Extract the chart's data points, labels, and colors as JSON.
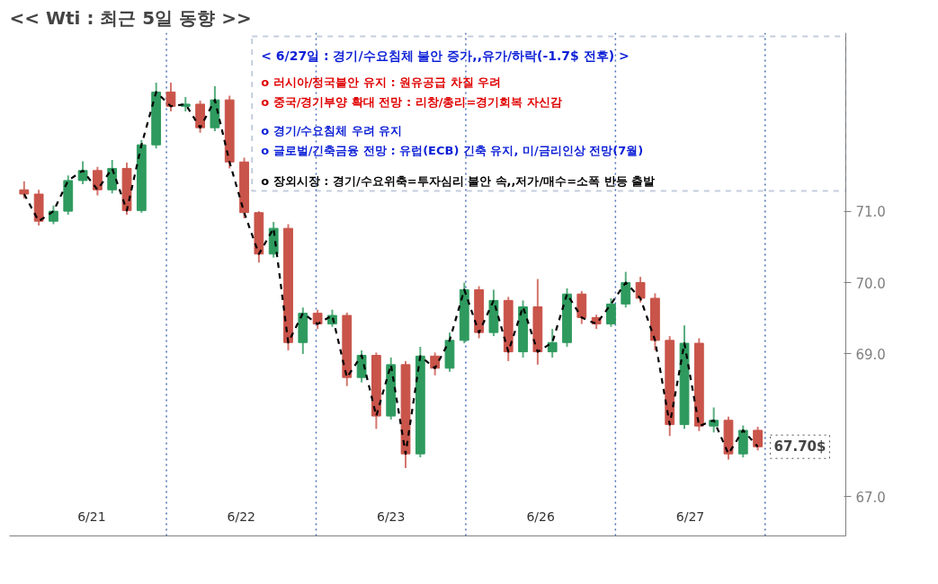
{
  "chart_data": {
    "type": "candlestick",
    "title": "<< Wti : 최근 5일 동향 >>",
    "categories": [
      null,
      null,
      null,
      null,
      null,
      null,
      null,
      null,
      null,
      null,
      null,
      null,
      null,
      null,
      null,
      null,
      null,
      null,
      null,
      null,
      null,
      null,
      null,
      null,
      null,
      null,
      null,
      null,
      null,
      null,
      null,
      null,
      null,
      null,
      null,
      null,
      null,
      null,
      null,
      null,
      null,
      null,
      null,
      null,
      null,
      null,
      null,
      null,
      null,
      null,
      null
    ],
    "ohlc": [
      [
        71.3,
        71.42,
        71.18,
        71.24
      ],
      [
        71.24,
        71.3,
        70.8,
        70.86
      ],
      [
        70.86,
        71.08,
        70.82,
        71.0
      ],
      [
        71.0,
        71.5,
        70.95,
        71.43
      ],
      [
        71.43,
        71.7,
        71.38,
        71.57
      ],
      [
        71.57,
        71.62,
        71.22,
        71.3
      ],
      [
        71.3,
        71.72,
        71.25,
        71.6
      ],
      [
        71.6,
        71.68,
        70.95,
        71.01
      ],
      [
        71.01,
        72.0,
        70.98,
        71.93
      ],
      [
        71.93,
        72.8,
        71.88,
        72.67
      ],
      [
        72.67,
        72.8,
        72.4,
        72.47
      ],
      [
        72.47,
        72.6,
        72.4,
        72.5
      ],
      [
        72.5,
        72.55,
        72.1,
        72.17
      ],
      [
        72.17,
        72.75,
        72.12,
        72.56
      ],
      [
        72.56,
        72.62,
        71.6,
        71.69
      ],
      [
        71.69,
        71.75,
        70.9,
        70.98
      ],
      [
        70.98,
        71.0,
        70.28,
        70.4
      ],
      [
        70.4,
        70.85,
        70.35,
        70.76
      ],
      [
        70.76,
        70.82,
        69.05,
        69.16
      ],
      [
        69.16,
        69.65,
        69.0,
        69.57
      ],
      [
        69.57,
        69.62,
        69.35,
        69.42
      ],
      [
        69.42,
        69.62,
        69.38,
        69.54
      ],
      [
        69.54,
        69.58,
        68.55,
        68.67
      ],
      [
        68.67,
        69.05,
        68.6,
        68.98
      ],
      [
        68.98,
        69.02,
        67.95,
        68.13
      ],
      [
        68.13,
        68.95,
        68.08,
        68.85
      ],
      [
        68.85,
        68.9,
        67.4,
        67.6
      ],
      [
        67.6,
        69.1,
        67.55,
        68.97
      ],
      [
        68.97,
        69.02,
        68.7,
        68.8
      ],
      [
        68.8,
        69.3,
        68.75,
        69.19
      ],
      [
        69.19,
        70.0,
        69.15,
        69.9
      ],
      [
        69.9,
        69.95,
        69.22,
        69.3
      ],
      [
        69.3,
        69.9,
        69.25,
        69.75
      ],
      [
        69.75,
        69.8,
        68.9,
        69.03
      ],
      [
        69.03,
        69.75,
        68.95,
        69.66
      ],
      [
        69.66,
        70.05,
        68.85,
        69.03
      ],
      [
        69.03,
        69.35,
        68.95,
        69.16
      ],
      [
        69.16,
        69.92,
        69.1,
        69.84
      ],
      [
        69.84,
        69.88,
        69.42,
        69.51
      ],
      [
        69.51,
        69.55,
        69.35,
        69.42
      ],
      [
        69.42,
        69.78,
        69.38,
        69.7
      ],
      [
        69.7,
        70.15,
        69.65,
        70.0
      ],
      [
        70.0,
        70.08,
        69.72,
        69.78
      ],
      [
        69.78,
        69.85,
        69.05,
        69.19
      ],
      [
        69.19,
        69.25,
        67.85,
        68.01
      ],
      [
        68.01,
        69.4,
        67.95,
        69.15
      ],
      [
        69.15,
        69.22,
        67.92,
        67.99
      ],
      [
        67.99,
        68.25,
        67.9,
        68.07
      ],
      [
        68.07,
        68.12,
        67.52,
        67.6
      ],
      [
        67.6,
        68.0,
        67.55,
        67.93
      ],
      [
        67.93,
        67.98,
        67.65,
        67.7
      ]
    ],
    "series": [
      {
        "type": "line",
        "color": "#000000",
        "line_style": "dashed",
        "values": [
          71.24,
          70.86,
          71.0,
          71.43,
          71.57,
          71.3,
          71.6,
          71.01,
          71.93,
          72.67,
          72.47,
          72.5,
          72.17,
          72.56,
          71.69,
          70.98,
          70.4,
          70.76,
          69.16,
          69.57,
          69.42,
          69.54,
          68.67,
          68.98,
          68.13,
          68.85,
          67.6,
          68.97,
          68.8,
          69.19,
          69.9,
          69.3,
          69.75,
          69.03,
          69.66,
          69.03,
          69.16,
          69.84,
          69.51,
          69.42,
          69.7,
          70.0,
          69.78,
          69.19,
          68.01,
          69.15,
          67.99,
          68.07,
          67.6,
          67.93,
          67.7
        ],
        "value_labels": [
          null,
          null,
          null,
          null,
          null,
          null,
          null,
          null,
          null,
          null,
          null,
          null,
          null,
          null,
          null,
          null,
          null,
          null,
          null,
          null,
          null,
          null,
          null,
          null,
          null,
          null,
          null,
          null,
          null,
          null,
          null,
          null,
          null,
          null,
          null,
          null,
          null,
          null,
          null,
          null,
          null,
          null,
          null,
          null,
          null,
          null,
          null,
          null,
          null,
          null,
          "67.70$"
        ]
      }
    ],
    "ylim": [
      66.45,
      73.5
    ],
    "yticks": [
      {
        "value": 67,
        "label": "67.0"
      },
      {
        "value": 69,
        "label": "69.0"
      },
      {
        "value": 70,
        "label": "70.0"
      },
      {
        "value": 71,
        "label": "71.0"
      }
    ],
    "tick_labels": "y",
    "grid": false,
    "ref_lines": [
      {
        "axis": "x",
        "color": "#4a6fb5",
        "line_style": "dotted"
      },
      {
        "axis": "x",
        "color": "#4a6fb5",
        "line_style": "dotted"
      },
      {
        "axis": "x",
        "color": "#4a6fb5",
        "line_style": "dotted"
      },
      {
        "axis": "x",
        "color": "#4a6fb5",
        "line_style": "dotted"
      },
      {
        "axis": "x",
        "color": "#4a6fb5",
        "line_style": "dotted"
      }
    ],
    "annotations": [
      "< 6/27일 : 경기/수요침체 불안 증가,,유가/하락(-1.7$ 전후) >",
      "o 러시아/정국불안 유지 : 원유공급 차질 우려",
      "o 중국/경기부양 확대 전망 : 리창/총리=경기회복 자신감",
      "o 경기/수요침체 우려 유지",
      "o 글로벌/긴축금융 전망 : 유럽(ECB) 긴축 유지, 미/금리인상 전망(7월)",
      "o 장외시장 : 경기/수요위축=투자심리 불안 속,,저가/매수=소폭 반등 출발",
      {
        "text": "6/21"
      },
      {
        "text": "6/22"
      },
      {
        "text": "6/23"
      },
      {
        "text": "6/26"
      },
      {
        "text": "6/27"
      }
    ]
  }
}
